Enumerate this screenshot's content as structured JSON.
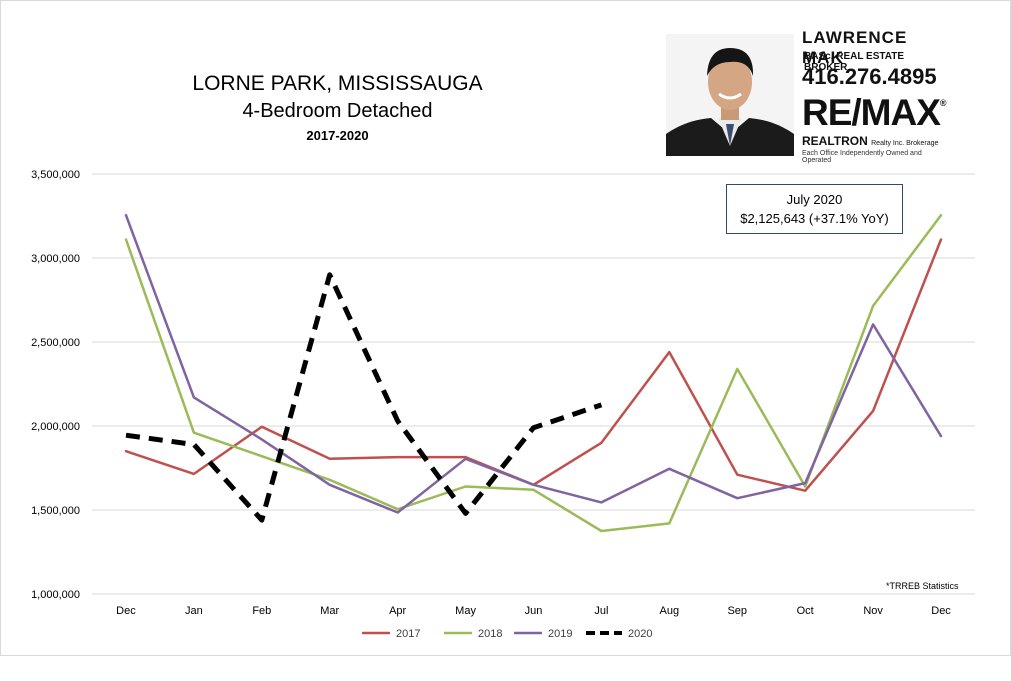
{
  "chart_data": {
    "type": "line",
    "title": "LORNE PARK, MISSISSAUGA",
    "subtitle": "4-Bedroom Detached",
    "period": "2017-2020",
    "x": [
      "Dec",
      "Jan",
      "Feb",
      "Mar",
      "Apr",
      "May",
      "Jun",
      "Jul",
      "Aug",
      "Sep",
      "Oct",
      "Nov",
      "Dec"
    ],
    "y_ticks": [
      "1,000,000",
      "1,500,000",
      "2,000,000",
      "2,500,000",
      "3,000,000",
      "3,500,000"
    ],
    "ylim": [
      1000000,
      3500000
    ],
    "grid": true,
    "legend_position": "bottom",
    "series": [
      {
        "name": "2017",
        "color": "#c0504d",
        "dashed": false,
        "values": [
          1850000,
          1715000,
          1995000,
          1805000,
          1815000,
          1815000,
          1650000,
          1900000,
          2440000,
          1710000,
          1615000,
          2090000,
          3110000
        ]
      },
      {
        "name": "2018",
        "color": "#9bbb59",
        "dashed": false,
        "values": [
          3110000,
          1960000,
          1820000,
          1680000,
          1505000,
          1640000,
          1620000,
          1375000,
          1420000,
          2340000,
          1640000,
          2715000,
          3255000
        ]
      },
      {
        "name": "2019",
        "color": "#8064a2",
        "dashed": false,
        "values": [
          3255000,
          2170000,
          1920000,
          1650000,
          1485000,
          1805000,
          1650000,
          1545000,
          1745000,
          1570000,
          1660000,
          2605000,
          1940000
        ]
      },
      {
        "name": "2020",
        "color": "#000000",
        "dashed": true,
        "values": [
          1945000,
          1890000,
          1440000,
          2900000,
          2030000,
          1480000,
          1990000,
          2125643,
          null,
          null,
          null,
          null,
          null
        ]
      }
    ],
    "annotation": {
      "line1": "July 2020",
      "line2": "$2,125,643  (+37.1% YoY)"
    },
    "source_note": "*TRREB Statistics"
  },
  "ad": {
    "name": "LAWRENCE MAK",
    "role": "BASc, REAL ESTATE BROKER",
    "phone": "416.276.4895",
    "brand": "RE/MAX",
    "brand_mark": "®",
    "office": "REALTRON",
    "office_small": "Realty Inc. Brokerage",
    "office_note": "Each Office Independently Owned and Operated"
  }
}
